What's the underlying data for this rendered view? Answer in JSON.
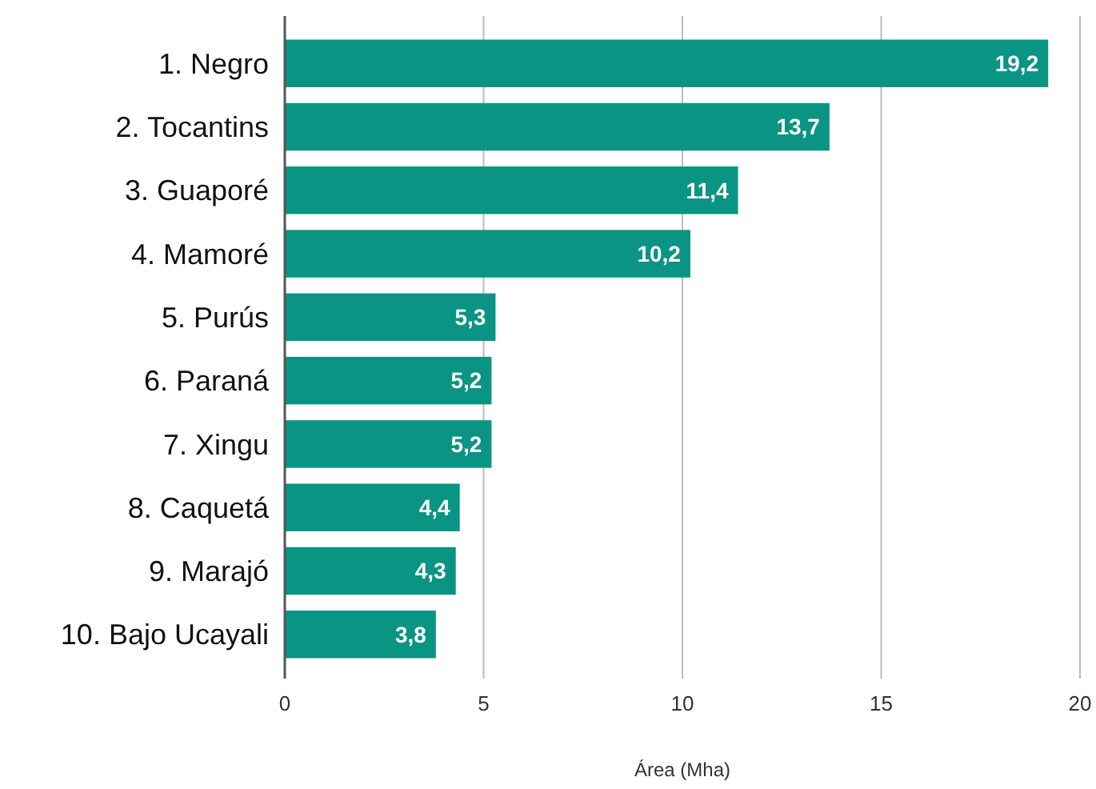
{
  "chart_data": {
    "type": "bar",
    "orientation": "horizontal",
    "xlabel": "Área (Mha)",
    "categories": [
      "1. Negro",
      "2. Tocantins",
      "3. Guaporé",
      "4. Mamoré",
      "5. Purús",
      "6. Paraná",
      "7. Xingu",
      "8. Caquetá",
      "9. Marajó",
      "10. Bajo Ucayali"
    ],
    "values": [
      19.2,
      13.7,
      11.4,
      10.2,
      5.3,
      5.2,
      5.2,
      4.4,
      4.3,
      3.8
    ],
    "value_labels": [
      "19,2",
      "13,7",
      "11,4",
      "10,2",
      "5,3",
      "5,2",
      "5,2",
      "4,4",
      "4,3",
      "3,8"
    ],
    "color": "#0a9484",
    "xlim": [
      0,
      20
    ],
    "xticks": [
      0,
      5,
      10,
      15,
      20
    ],
    "grid": "x"
  }
}
